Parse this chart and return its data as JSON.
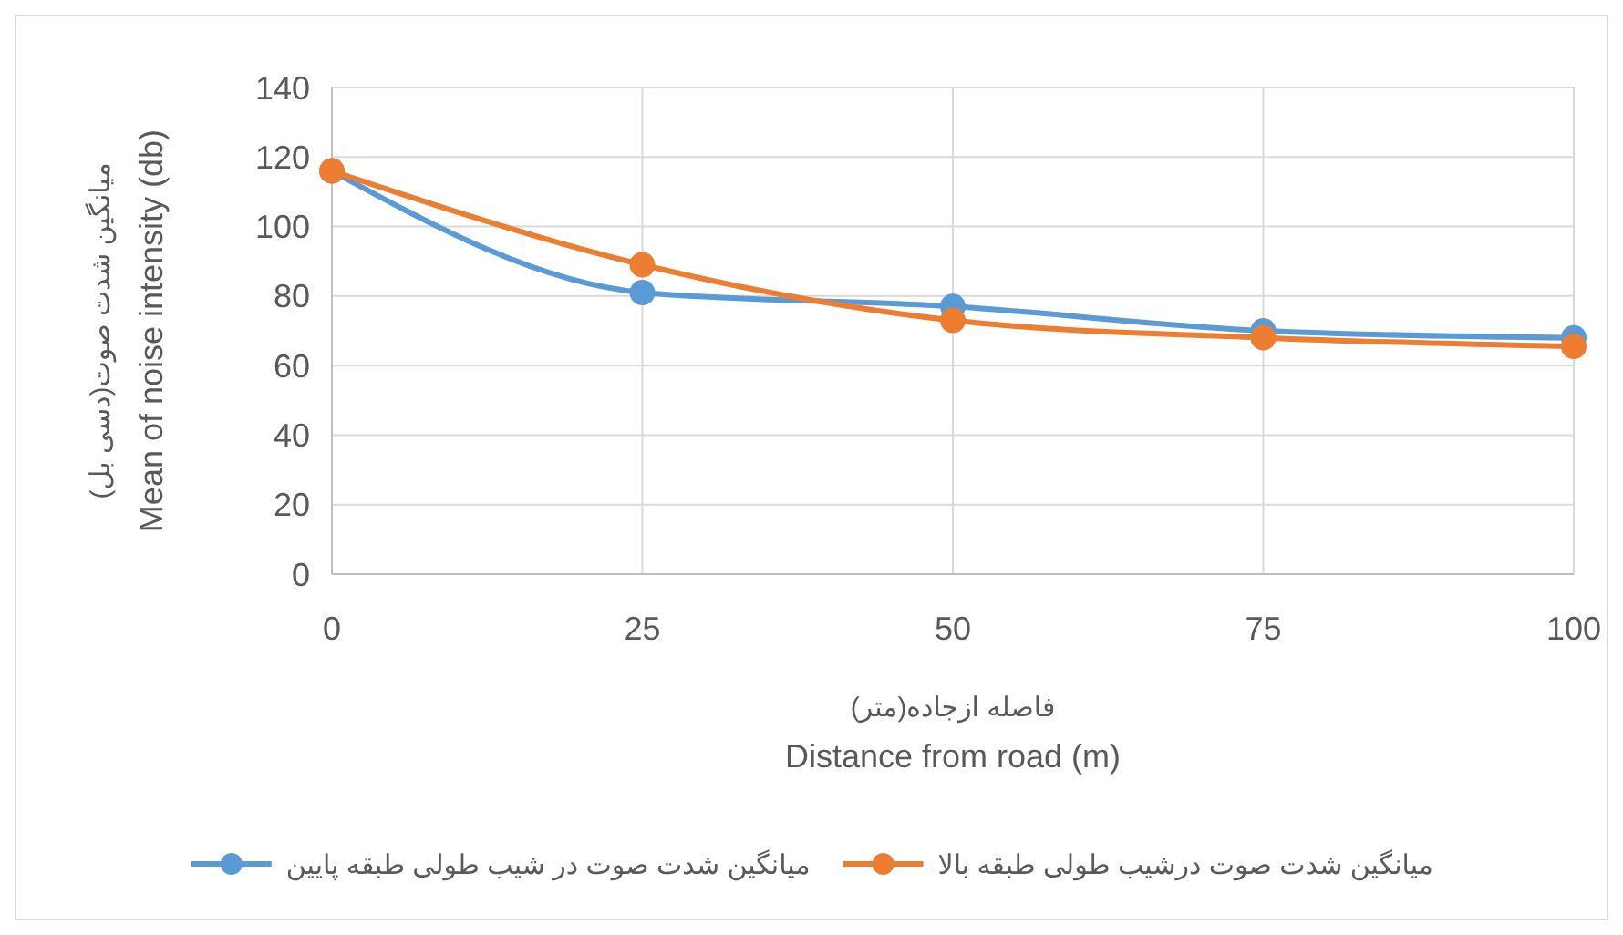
{
  "chart_data": {
    "type": "line",
    "xlabel": "فاصله ازجاده(متر)\nDistance from road (m)",
    "ylabel": "میانگین شدت صوت(دسی بل)\nMean of noise intensity (db)",
    "x": [
      0,
      25,
      50,
      75,
      100
    ],
    "xlim": [
      0,
      100
    ],
    "xticks": [
      0,
      25,
      50,
      75,
      100
    ],
    "ylim": [
      0,
      140
    ],
    "yticks": [
      0,
      20,
      40,
      60,
      80,
      100,
      120,
      140
    ],
    "series": [
      {
        "name": "میانگین شدت صوت در شیب طولی طبقه پایین",
        "color": "#5b9bd5",
        "values": [
          116,
          81,
          77,
          70,
          68
        ]
      },
      {
        "name": "میانگین شدت صوت درشیب طولی طبقه بالا",
        "color": "#ed7d31",
        "values": [
          116,
          89,
          73,
          68,
          65.5
        ]
      }
    ],
    "grid": true,
    "legend": "bottom",
    "marker": "circle",
    "line_style": "solid"
  }
}
